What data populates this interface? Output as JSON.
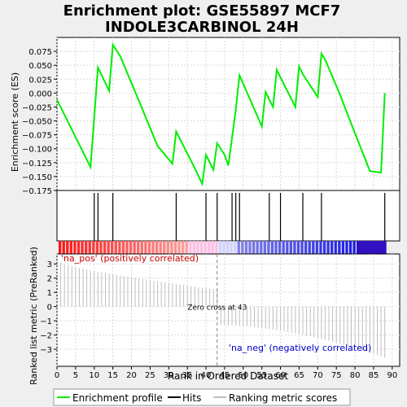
{
  "chart_data": {
    "type": "line",
    "title": "Enrichment plot: GSE55897 MCF7\nINDOLE3CARBINOL 24H",
    "es_panel": {
      "ylabel": "Enrichment score (ES)",
      "ylim": [
        -0.175,
        0.1
      ],
      "yticks": [
        -0.175,
        -0.15,
        -0.125,
        -0.1,
        -0.075,
        -0.05,
        -0.025,
        0.0,
        0.025,
        0.05,
        0.075
      ],
      "ytick_labels": [
        "−0.175",
        "−0.150",
        "−0.125",
        "−0.100",
        "−0.075",
        "−0.050",
        "−0.025",
        "0.000",
        "0.025",
        "0.050",
        "0.075"
      ],
      "series": [
        {
          "x": [
            0,
            9,
            11,
            14,
            15,
            17,
            22,
            27,
            31,
            32,
            37,
            39,
            40,
            42,
            43,
            45,
            46,
            48,
            49,
            55,
            56,
            58,
            59,
            60,
            64,
            65,
            66,
            70,
            71,
            72,
            76,
            78,
            84,
            87,
            88
          ],
          "y": [
            -0.012,
            -0.133,
            0.046,
            0.004,
            0.087,
            0.066,
            -0.014,
            -0.095,
            -0.127,
            -0.069,
            -0.135,
            -0.163,
            -0.111,
            -0.138,
            -0.09,
            -0.111,
            -0.13,
            -0.03,
            0.032,
            -0.06,
            0.002,
            -0.025,
            0.042,
            0.028,
            -0.025,
            0.048,
            0.034,
            -0.007,
            0.071,
            0.06,
            -0.003,
            -0.038,
            -0.14,
            -0.143,
            0.0
          ]
        }
      ]
    },
    "hits": [
      10,
      11,
      15,
      32,
      40,
      43,
      47,
      48,
      49,
      57,
      60,
      66,
      71,
      88
    ],
    "ranked_panel": {
      "xlabel": "Rank in Ordered Dataset",
      "ylabel": "Ranked list metric (PreRanked)",
      "xlim": [
        0,
        92
      ],
      "ylim": [
        -4.2,
        3.7
      ],
      "xticks": [
        0,
        5,
        10,
        15,
        20,
        25,
        30,
        35,
        40,
        45,
        50,
        55,
        60,
        65,
        70,
        75,
        80,
        85,
        90
      ],
      "yticks": [
        -3,
        -2,
        -1,
        0,
        1,
        2,
        3
      ],
      "ytick_labels": [
        "−3",
        "−2",
        "−1",
        "0",
        "1",
        "2",
        "3"
      ],
      "metric_endpoints": [
        3.1,
        1.2,
        -1.3,
        -3.6
      ],
      "zero_cross_rank": 43,
      "zero_cross_label": "Zero cross at 43",
      "pos_label": "'na_pos' (positively correlated)",
      "neg_label": "'na_neg' (negatively correlated)"
    },
    "legend": {
      "placement": "bottom",
      "entries": [
        "Enrichment profile",
        "Hits",
        "Ranking metric scores"
      ]
    },
    "colors": {
      "profile": "#00ee00",
      "hits": "#000000",
      "metric": "#bebebe",
      "pos_text": "#cc0000",
      "neg_text": "#0000cc",
      "pos_bar": "#ff0000",
      "neg_bar": "#0000ff",
      "grid": "#d9d9d9"
    }
  }
}
